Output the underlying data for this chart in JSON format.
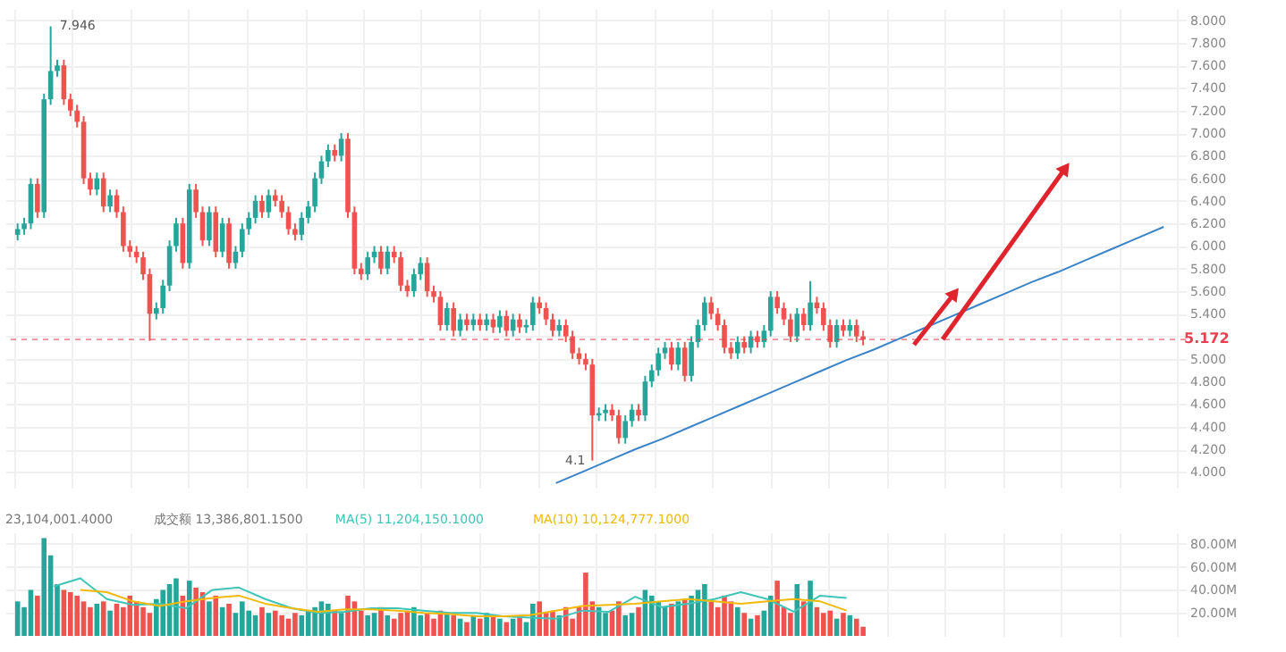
{
  "chart_data": [
    {
      "type": "candlestick",
      "ylim": [
        3.86,
        8.1
      ],
      "yticks": [
        {
          "value": 4,
          "label": "4.000"
        },
        {
          "value": 4.2,
          "label": "4.200"
        },
        {
          "value": 4.4,
          "label": "4.400"
        },
        {
          "value": 4.6,
          "label": "4.600"
        },
        {
          "value": 4.8,
          "label": "4.800"
        },
        {
          "value": 5,
          "label": "5.000"
        },
        {
          "value": 5.2,
          "label": null
        },
        {
          "value": 5.4,
          "label": "5.400"
        },
        {
          "value": 5.6,
          "label": "5.600"
        },
        {
          "value": 5.8,
          "label": "5.800"
        },
        {
          "value": 6,
          "label": "6.000"
        },
        {
          "value": 6.2,
          "label": "6.200"
        },
        {
          "value": 6.4,
          "label": "6.400"
        },
        {
          "value": 6.6,
          "label": "6.600"
        },
        {
          "value": 6.8,
          "label": "6.800"
        },
        {
          "value": 7,
          "label": "7.000"
        },
        {
          "value": 7.2,
          "label": "7.200"
        },
        {
          "value": 7.4,
          "label": "7.400"
        },
        {
          "value": 7.6,
          "label": "7.600"
        },
        {
          "value": 7.8,
          "label": "7.800"
        },
        {
          "value": 8,
          "label": "8.000"
        }
      ],
      "tick_labels": "y",
      "grid": true,
      "categories": [
        null,
        null,
        null,
        null,
        null,
        null,
        null,
        null,
        null,
        null,
        null,
        null,
        null,
        null,
        null,
        null,
        null,
        null,
        null,
        null,
        null,
        null,
        null,
        null,
        null,
        null,
        null,
        null,
        null,
        null,
        null,
        null,
        null,
        null,
        null,
        null,
        null,
        null,
        null,
        null,
        null,
        null,
        null,
        null,
        null,
        null,
        null,
        null,
        null,
        null,
        null,
        null,
        null,
        null,
        null,
        null,
        null,
        null,
        null,
        null,
        null,
        null,
        null,
        null,
        null,
        null,
        null,
        null,
        null,
        null,
        null,
        null,
        null,
        null,
        null,
        null,
        null,
        null,
        null,
        null,
        null,
        null,
        null,
        null,
        null,
        null,
        null,
        null,
        null,
        null,
        null,
        null,
        null,
        null,
        null,
        null,
        null,
        null,
        null,
        null,
        null,
        null,
        null,
        null,
        null,
        null,
        null,
        null,
        null,
        null,
        null,
        null,
        null,
        null,
        null,
        null,
        null,
        null,
        null,
        null,
        null,
        null,
        null,
        null,
        null,
        null,
        null,
        null,
        null,
        null,
        null,
        null,
        null,
        null,
        null,
        null,
        null,
        null,
        null,
        null,
        null,
        null,
        null,
        null,
        null,
        null,
        null,
        null,
        null,
        null,
        null,
        null,
        null,
        null,
        null,
        null,
        null,
        null,
        null,
        null,
        null,
        null,
        null,
        null,
        null,
        null,
        null,
        null,
        null,
        null,
        null,
        null,
        null,
        null,
        null,
        null
      ],
      "ohlc": [
        [
          6.1,
          6.2,
          6.05,
          6.15
        ],
        [
          6.15,
          6.25,
          6.1,
          6.2
        ],
        [
          6.2,
          6.6,
          6.15,
          6.55
        ],
        [
          6.55,
          6.6,
          6.25,
          6.3
        ],
        [
          6.3,
          7.35,
          6.25,
          7.3
        ],
        [
          7.3,
          7.946,
          7.25,
          7.55
        ],
        [
          7.55,
          7.65,
          7.5,
          7.6
        ],
        [
          7.6,
          7.65,
          7.25,
          7.3
        ],
        [
          7.3,
          7.35,
          7.15,
          7.2
        ],
        [
          7.2,
          7.25,
          7.05,
          7.1
        ],
        [
          7.1,
          7.15,
          6.55,
          6.6
        ],
        [
          6.6,
          6.65,
          6.45,
          6.5
        ],
        [
          6.5,
          6.65,
          6.45,
          6.6
        ],
        [
          6.6,
          6.65,
          6.3,
          6.35
        ],
        [
          6.35,
          6.5,
          6.3,
          6.45
        ],
        [
          6.45,
          6.5,
          6.25,
          6.3
        ],
        [
          6.3,
          6.35,
          5.95,
          6.0
        ],
        [
          6.0,
          6.05,
          5.9,
          5.95
        ],
        [
          5.95,
          6.0,
          5.85,
          5.9
        ],
        [
          5.9,
          5.95,
          5.7,
          5.75
        ],
        [
          5.75,
          5.8,
          5.16,
          5.4
        ],
        [
          5.4,
          5.5,
          5.35,
          5.45
        ],
        [
          5.45,
          5.7,
          5.4,
          5.65
        ],
        [
          5.65,
          6.05,
          5.6,
          6.0
        ],
        [
          6.0,
          6.25,
          5.95,
          6.2
        ],
        [
          6.2,
          6.25,
          5.8,
          5.85
        ],
        [
          5.85,
          6.55,
          5.8,
          6.5
        ],
        [
          6.5,
          6.55,
          6.25,
          6.3
        ],
        [
          6.3,
          6.35,
          6.0,
          6.05
        ],
        [
          6.05,
          6.35,
          6.0,
          6.3
        ],
        [
          6.3,
          6.35,
          5.9,
          5.95
        ],
        [
          5.95,
          6.25,
          5.9,
          6.2
        ],
        [
          6.2,
          6.25,
          5.8,
          5.85
        ],
        [
          5.85,
          6.0,
          5.8,
          5.95
        ],
        [
          5.95,
          6.2,
          5.9,
          6.15
        ],
        [
          6.15,
          6.3,
          6.1,
          6.25
        ],
        [
          6.25,
          6.45,
          6.2,
          6.4
        ],
        [
          6.4,
          6.45,
          6.25,
          6.3
        ],
        [
          6.3,
          6.5,
          6.25,
          6.45
        ],
        [
          6.45,
          6.5,
          6.35,
          6.4
        ],
        [
          6.4,
          6.45,
          6.25,
          6.3
        ],
        [
          6.3,
          6.35,
          6.1,
          6.15
        ],
        [
          6.15,
          6.2,
          6.05,
          6.1
        ],
        [
          6.1,
          6.3,
          6.05,
          6.25
        ],
        [
          6.25,
          6.4,
          6.2,
          6.35
        ],
        [
          6.35,
          6.65,
          6.3,
          6.6
        ],
        [
          6.6,
          6.8,
          6.55,
          6.75
        ],
        [
          6.75,
          6.9,
          6.7,
          6.85
        ],
        [
          6.85,
          6.9,
          6.75,
          6.8
        ],
        [
          6.8,
          7.0,
          6.75,
          6.95
        ],
        [
          6.95,
          7.0,
          6.25,
          6.3
        ],
        [
          6.3,
          6.35,
          5.75,
          5.8
        ],
        [
          5.8,
          5.85,
          5.7,
          5.75
        ],
        [
          5.75,
          5.95,
          5.7,
          5.9
        ],
        [
          5.9,
          6.0,
          5.85,
          5.95
        ],
        [
          5.95,
          6.0,
          5.75,
          5.8
        ],
        [
          5.8,
          6.0,
          5.75,
          5.95
        ],
        [
          5.95,
          6.0,
          5.85,
          5.9
        ],
        [
          5.9,
          5.95,
          5.6,
          5.65
        ],
        [
          5.65,
          5.7,
          5.55,
          5.6
        ],
        [
          5.6,
          5.8,
          5.55,
          5.75
        ],
        [
          5.75,
          5.9,
          5.7,
          5.85
        ],
        [
          5.85,
          5.9,
          5.55,
          5.6
        ],
        [
          5.6,
          5.65,
          5.5,
          5.55
        ],
        [
          5.55,
          5.6,
          5.25,
          5.3
        ],
        [
          5.3,
          5.5,
          5.25,
          5.45
        ],
        [
          5.45,
          5.5,
          5.2,
          5.25
        ],
        [
          5.25,
          5.4,
          5.2,
          5.35
        ],
        [
          5.35,
          5.4,
          5.25,
          5.3
        ],
        [
          5.3,
          5.4,
          5.25,
          5.35
        ],
        [
          5.35,
          5.4,
          5.25,
          5.3
        ],
        [
          5.3,
          5.4,
          5.25,
          5.35
        ],
        [
          5.35,
          5.4,
          5.23,
          5.28
        ],
        [
          5.28,
          5.43,
          5.23,
          5.38
        ],
        [
          5.38,
          5.43,
          5.2,
          5.25
        ],
        [
          5.25,
          5.4,
          5.2,
          5.35
        ],
        [
          5.35,
          5.4,
          5.23,
          5.28
        ],
        [
          5.28,
          5.35,
          5.23,
          5.3
        ],
        [
          5.3,
          5.55,
          5.25,
          5.5
        ],
        [
          5.5,
          5.55,
          5.4,
          5.45
        ],
        [
          5.45,
          5.5,
          5.3,
          5.35
        ],
        [
          5.35,
          5.4,
          5.2,
          5.25
        ],
        [
          5.25,
          5.35,
          5.2,
          5.3
        ],
        [
          5.3,
          5.35,
          5.15,
          5.2
        ],
        [
          5.2,
          5.25,
          5.0,
          5.05
        ],
        [
          5.05,
          5.1,
          4.95,
          5.0
        ],
        [
          5.0,
          5.05,
          4.9,
          4.95
        ],
        [
          4.95,
          5.0,
          4.1,
          4.5
        ],
        [
          4.5,
          4.57,
          4.45,
          4.52
        ],
        [
          4.52,
          4.6,
          4.45,
          4.55
        ],
        [
          4.55,
          4.6,
          4.45,
          4.5
        ],
        [
          4.5,
          4.55,
          4.25,
          4.3
        ],
        [
          4.3,
          4.5,
          4.25,
          4.45
        ],
        [
          4.45,
          4.6,
          4.4,
          4.55
        ],
        [
          4.55,
          4.6,
          4.45,
          4.5
        ],
        [
          4.5,
          4.85,
          4.45,
          4.8
        ],
        [
          4.8,
          4.95,
          4.75,
          4.9
        ],
        [
          4.9,
          5.1,
          4.85,
          5.05
        ],
        [
          5.05,
          5.15,
          5.0,
          5.1
        ],
        [
          5.1,
          5.15,
          4.9,
          4.95
        ],
        [
          4.95,
          5.15,
          4.9,
          5.1
        ],
        [
          5.1,
          5.15,
          4.8,
          4.85
        ],
        [
          4.85,
          5.2,
          4.8,
          5.15
        ],
        [
          5.15,
          5.35,
          5.1,
          5.3
        ],
        [
          5.3,
          5.55,
          5.25,
          5.5
        ],
        [
          5.5,
          5.55,
          5.35,
          5.4
        ],
        [
          5.4,
          5.45,
          5.25,
          5.3
        ],
        [
          5.3,
          5.35,
          5.05,
          5.1
        ],
        [
          5.1,
          5.15,
          5.0,
          5.05
        ],
        [
          5.05,
          5.2,
          5.0,
          5.15
        ],
        [
          5.15,
          5.2,
          5.05,
          5.1
        ],
        [
          5.1,
          5.25,
          5.05,
          5.2
        ],
        [
          5.2,
          5.25,
          5.1,
          5.15
        ],
        [
          5.15,
          5.3,
          5.1,
          5.25
        ],
        [
          5.25,
          5.6,
          5.2,
          5.55
        ],
        [
          5.55,
          5.6,
          5.4,
          5.45
        ],
        [
          5.45,
          5.5,
          5.3,
          5.35
        ],
        [
          5.35,
          5.4,
          5.15,
          5.2
        ],
        [
          5.2,
          5.45,
          5.15,
          5.4
        ],
        [
          5.4,
          5.45,
          5.25,
          5.3
        ],
        [
          5.3,
          5.69,
          5.25,
          5.5
        ],
        [
          5.5,
          5.55,
          5.4,
          5.45
        ],
        [
          5.45,
          5.5,
          5.25,
          5.3
        ],
        [
          5.3,
          5.35,
          5.1,
          5.15
        ],
        [
          5.15,
          5.35,
          5.1,
          5.3
        ],
        [
          5.3,
          5.35,
          5.2,
          5.25
        ],
        [
          5.25,
          5.35,
          5.2,
          5.3
        ],
        [
          5.3,
          5.35,
          5.15,
          5.2
        ],
        [
          5.2,
          5.25,
          5.12,
          5.172
        ],
        null,
        null,
        null,
        null,
        null,
        null,
        null,
        null,
        null,
        null,
        null,
        null,
        null,
        null,
        null,
        null,
        null,
        null,
        null,
        null,
        null,
        null,
        null,
        null,
        null,
        null,
        null,
        null,
        null,
        null,
        null,
        null,
        null,
        null,
        null,
        null,
        null,
        null,
        null,
        null,
        null,
        null,
        null,
        null,
        null,
        null,
        null
      ],
      "colors": [
        "#26a69a",
        "#26a69a",
        "#26a69a",
        "#ef5350",
        "#26a69a",
        "#26a69a",
        "#26a69a",
        "#ef5350",
        "#ef5350",
        "#ef5350",
        "#ef5350",
        "#ef5350",
        "#26a69a",
        "#ef5350",
        "#26a69a",
        "#ef5350",
        "#ef5350",
        "#ef5350",
        "#ef5350",
        "#ef5350",
        "#ef5350",
        "#26a69a",
        "#26a69a",
        "#26a69a",
        "#26a69a",
        "#ef5350",
        "#26a69a",
        "#ef5350",
        "#ef5350",
        "#26a69a",
        "#ef5350",
        "#26a69a",
        "#ef5350",
        "#26a69a",
        "#26a69a",
        "#26a69a",
        "#26a69a",
        "#ef5350",
        "#26a69a",
        "#ef5350",
        "#ef5350",
        "#ef5350",
        "#ef5350",
        "#26a69a",
        "#26a69a",
        "#26a69a",
        "#26a69a",
        "#26a69a",
        "#ef5350",
        "#26a69a",
        "#ef5350",
        "#ef5350",
        "#ef5350",
        "#26a69a",
        "#26a69a",
        "#ef5350",
        "#26a69a",
        "#ef5350",
        "#ef5350",
        "#ef5350",
        "#26a69a",
        "#26a69a",
        "#ef5350",
        "#ef5350",
        "#ef5350",
        "#26a69a",
        "#ef5350",
        "#26a69a",
        "#ef5350",
        "#26a69a",
        "#ef5350",
        "#26a69a",
        "#ef5350",
        "#26a69a",
        "#ef5350",
        "#26a69a",
        "#ef5350",
        "#26a69a",
        "#26a69a",
        "#ef5350",
        "#ef5350",
        "#ef5350",
        "#26a69a",
        "#ef5350",
        "#ef5350",
        "#ef5350",
        "#ef5350",
        "#ef5350",
        "#26a69a",
        "#26a69a",
        "#ef5350",
        "#ef5350",
        "#26a69a",
        "#26a69a",
        "#ef5350",
        "#26a69a",
        "#26a69a",
        "#26a69a",
        "#26a69a",
        "#ef5350",
        "#26a69a",
        "#ef5350",
        "#26a69a",
        "#26a69a",
        "#26a69a",
        "#ef5350",
        "#ef5350",
        "#ef5350",
        "#ef5350",
        "#26a69a",
        "#ef5350",
        "#26a69a",
        "#ef5350",
        "#26a69a",
        "#26a69a",
        "#ef5350",
        "#ef5350",
        "#ef5350",
        "#26a69a",
        "#ef5350",
        "#26a69a",
        "#ef5350",
        "#ef5350",
        "#ef5350",
        "#26a69a",
        "#ef5350",
        "#26a69a",
        "#ef5350",
        "#ef5350",
        null,
        null,
        null,
        null,
        null,
        null,
        null,
        null,
        null,
        null,
        null,
        null,
        null,
        null,
        null,
        null,
        null,
        null,
        null,
        null,
        null,
        null,
        null,
        null,
        null,
        null,
        null,
        null,
        null,
        null,
        null,
        null,
        null,
        null,
        null,
        null,
        null,
        null,
        null,
        null,
        null,
        null,
        null,
        null,
        null,
        null,
        null
      ],
      "ref_lines": [
        {
          "axis": "y",
          "value": 5.172,
          "label": "5.172",
          "color": "#e5414e",
          "line_style": "dashed"
        }
      ],
      "annotations": [
        "7.946",
        "4.1"
      ]
    },
    {
      "type": "line",
      "ylim": [
        3.86,
        8.1
      ],
      "tick_labels": false,
      "categories": [
        null,
        null,
        null,
        null,
        null,
        null,
        null,
        null,
        null,
        null,
        null,
        null,
        null,
        null,
        null,
        null,
        null,
        null,
        null,
        null,
        null,
        null,
        null,
        null,
        null,
        null,
        null,
        null,
        null,
        null,
        null,
        null,
        null,
        null,
        null,
        null,
        null,
        null,
        null,
        null,
        null,
        null,
        null,
        null
      ],
      "series": [
        {
          "color": "#3b83c8",
          "values": [
            null,
            null,
            null,
            null,
            null,
            null,
            null,
            null,
            null,
            null,
            null,
            null,
            null,
            null,
            null,
            null,
            null,
            null,
            null,
            null,
            3.9,
            4.0,
            4.1,
            4.2,
            4.29,
            4.39,
            4.49,
            4.59,
            4.69,
            4.79,
            4.89,
            4.99,
            5.08,
            5.18,
            5.28,
            5.38,
            5.48,
            5.58,
            5.68,
            5.77,
            5.87,
            5.97,
            6.07,
            6.17
          ]
        }
      ]
    },
    {
      "type": "bar",
      "ylim": [
        0,
        90
      ],
      "yticks": [
        {
          "value": 20,
          "label": "20.00M"
        },
        {
          "value": 40,
          "label": "40.00M"
        },
        {
          "value": 60,
          "label": "60.00M"
        },
        {
          "value": 80,
          "label": "80.00M"
        }
      ],
      "tick_labels": "y",
      "grid": true,
      "categories": [
        null,
        null,
        null,
        null,
        null,
        null,
        null,
        null,
        null,
        null,
        null,
        null,
        null,
        null,
        null,
        null,
        null,
        null,
        null,
        null,
        null,
        null,
        null,
        null,
        null,
        null,
        null,
        null,
        null,
        null,
        null,
        null,
        null,
        null,
        null,
        null,
        null,
        null,
        null,
        null,
        null,
        null,
        null,
        null,
        null,
        null,
        null,
        null,
        null,
        null,
        null,
        null,
        null,
        null,
        null,
        null,
        null,
        null,
        null,
        null,
        null,
        null,
        null,
        null,
        null,
        null,
        null,
        null,
        null,
        null,
        null,
        null,
        null,
        null,
        null,
        null,
        null,
        null,
        null,
        null,
        null,
        null,
        null,
        null,
        null,
        null,
        null,
        null,
        null,
        null,
        null,
        null,
        null,
        null,
        null,
        null,
        null,
        null,
        null,
        null,
        null,
        null,
        null,
        null,
        null,
        null,
        null,
        null,
        null,
        null,
        null,
        null,
        null,
        null,
        null,
        null,
        null,
        null,
        null,
        null,
        null,
        null,
        null,
        null,
        null,
        null,
        null,
        null,
        null,
        null,
        null,
        null,
        null,
        null,
        null,
        null,
        null,
        null,
        null,
        null,
        null,
        null,
        null,
        null,
        null,
        null,
        null,
        null,
        null,
        null,
        null,
        null,
        null,
        null,
        null,
        null,
        null,
        null,
        null,
        null,
        null,
        null,
        null,
        null,
        null,
        null,
        null,
        null,
        null,
        null,
        null,
        null,
        null,
        null,
        null,
        null
      ],
      "values": [
        30,
        25,
        40,
        35,
        85,
        70,
        45,
        40,
        38,
        35,
        30,
        25,
        28,
        30,
        22,
        28,
        25,
        35,
        30,
        25,
        20,
        32,
        40,
        45,
        50,
        35,
        48,
        42,
        38,
        30,
        35,
        25,
        28,
        20,
        30,
        22,
        18,
        25,
        20,
        22,
        18,
        15,
        20,
        18,
        22,
        25,
        30,
        28,
        22,
        20,
        35,
        30,
        22,
        18,
        20,
        25,
        18,
        15,
        20,
        22,
        25,
        18,
        20,
        15,
        22,
        20,
        18,
        15,
        12,
        18,
        15,
        20,
        18,
        15,
        12,
        15,
        18,
        12,
        28,
        30,
        20,
        22,
        18,
        25,
        15,
        25,
        55,
        30,
        25,
        20,
        22,
        30,
        18,
        20,
        25,
        40,
        35,
        30,
        25,
        28,
        30,
        32,
        35,
        40,
        45,
        30,
        25,
        35,
        30,
        25,
        20,
        15,
        18,
        22,
        35,
        48,
        25,
        20,
        45,
        30,
        48,
        25,
        20,
        22,
        15,
        20,
        18,
        15,
        8,
        null,
        null,
        null,
        null,
        null,
        null,
        null,
        null,
        null,
        null,
        null,
        null,
        null,
        null,
        null,
        null,
        null,
        null,
        null,
        null,
        null,
        null,
        null,
        null,
        null,
        null,
        null,
        null,
        null,
        null,
        null,
        null,
        null,
        null,
        null,
        null,
        null,
        null,
        null,
        null,
        null,
        null,
        null,
        null,
        null,
        null,
        null
      ],
      "colors": [
        "#26a69a",
        "#26a69a",
        "#26a69a",
        "#ef5350",
        "#26a69a",
        "#26a69a",
        "#26a69a",
        "#ef5350",
        "#ef5350",
        "#ef5350",
        "#ef5350",
        "#ef5350",
        "#26a69a",
        "#ef5350",
        "#26a69a",
        "#ef5350",
        "#ef5350",
        "#ef5350",
        "#ef5350",
        "#ef5350",
        "#ef5350",
        "#26a69a",
        "#26a69a",
        "#26a69a",
        "#26a69a",
        "#ef5350",
        "#26a69a",
        "#ef5350",
        "#ef5350",
        "#26a69a",
        "#ef5350",
        "#26a69a",
        "#ef5350",
        "#26a69a",
        "#26a69a",
        "#26a69a",
        "#26a69a",
        "#ef5350",
        "#26a69a",
        "#ef5350",
        "#ef5350",
        "#ef5350",
        "#ef5350",
        "#26a69a",
        "#26a69a",
        "#26a69a",
        "#26a69a",
        "#26a69a",
        "#ef5350",
        "#26a69a",
        "#ef5350",
        "#ef5350",
        "#ef5350",
        "#26a69a",
        "#26a69a",
        "#ef5350",
        "#26a69a",
        "#ef5350",
        "#ef5350",
        "#ef5350",
        "#26a69a",
        "#26a69a",
        "#ef5350",
        "#ef5350",
        "#ef5350",
        "#26a69a",
        "#ef5350",
        "#26a69a",
        "#ef5350",
        "#26a69a",
        "#ef5350",
        "#26a69a",
        "#ef5350",
        "#26a69a",
        "#ef5350",
        "#26a69a",
        "#ef5350",
        "#26a69a",
        "#26a69a",
        "#ef5350",
        "#ef5350",
        "#ef5350",
        "#26a69a",
        "#ef5350",
        "#ef5350",
        "#ef5350",
        "#ef5350",
        "#ef5350",
        "#26a69a",
        "#26a69a",
        "#ef5350",
        "#ef5350",
        "#26a69a",
        "#26a69a",
        "#ef5350",
        "#26a69a",
        "#26a69a",
        "#26a69a",
        "#26a69a",
        "#ef5350",
        "#26a69a",
        "#ef5350",
        "#26a69a",
        "#26a69a",
        "#26a69a",
        "#ef5350",
        "#ef5350",
        "#ef5350",
        "#ef5350",
        "#26a69a",
        "#ef5350",
        "#26a69a",
        "#ef5350",
        "#26a69a",
        "#26a69a",
        "#ef5350",
        "#ef5350",
        "#ef5350",
        "#26a69a",
        "#ef5350",
        "#26a69a",
        "#ef5350",
        "#ef5350",
        "#ef5350",
        "#26a69a",
        "#ef5350",
        "#26a69a",
        "#ef5350",
        "#ef5350",
        null,
        null,
        null,
        null,
        null,
        null,
        null,
        null,
        null,
        null,
        null,
        null,
        null,
        null,
        null,
        null,
        null,
        null,
        null,
        null,
        null,
        null,
        null,
        null,
        null,
        null,
        null,
        null,
        null,
        null,
        null,
        null,
        null,
        null,
        null,
        null,
        null,
        null,
        null,
        null,
        null,
        null,
        null,
        null,
        null,
        null,
        null
      ],
      "annotations": [
        "23,104,001.4000",
        "成交额 13,386,801.1500",
        "MA(5) 11,204,150.1000",
        "MA(10) 10,124,777.1000"
      ]
    },
    {
      "type": "line",
      "ylim": [
        0,
        90
      ],
      "tick_labels": false,
      "categories": [
        null,
        null,
        null,
        null,
        null,
        null,
        null,
        null,
        null,
        null,
        null,
        null,
        null,
        null,
        null,
        null,
        null,
        null,
        null,
        null,
        null,
        null,
        null,
        null,
        null,
        null,
        null,
        null,
        null,
        null,
        null,
        null,
        null,
        null,
        null,
        null,
        null,
        null,
        null,
        null,
        null,
        null,
        null,
        null
      ],
      "series": [
        {
          "color": "#3fc5b8",
          "values": [
            null,
            43,
            50,
            32,
            27,
            28,
            24,
            40,
            42,
            32,
            24,
            20,
            21,
            24,
            24,
            22,
            20,
            20,
            17,
            16,
            15,
            22,
            21,
            34,
            25,
            28,
            32,
            38,
            32,
            21,
            35,
            33,
            null,
            null,
            null,
            null,
            null,
            null,
            null,
            null,
            null,
            null,
            null,
            null
          ]
        }
      ]
    },
    {
      "type": "line",
      "ylim": [
        0,
        90
      ],
      "tick_labels": false,
      "categories": [
        null,
        null,
        null,
        null,
        null,
        null,
        null,
        null,
        null,
        null,
        null,
        null,
        null,
        null,
        null,
        null,
        null,
        null,
        null,
        null,
        null,
        null,
        null,
        null,
        null,
        null,
        null,
        null,
        null,
        null,
        null,
        null,
        null,
        null,
        null,
        null,
        null,
        null,
        null,
        null,
        null,
        null,
        null,
        null
      ],
      "series": [
        {
          "color": "#f0b90b",
          "values": [
            null,
            null,
            40,
            38,
            30,
            26,
            30,
            33,
            35,
            28,
            24,
            21,
            23,
            23,
            22,
            20,
            19,
            17,
            17,
            18,
            22,
            26,
            27,
            28,
            30,
            32,
            30,
            28,
            30,
            32,
            30,
            22,
            null,
            null,
            null,
            null,
            null,
            null,
            null,
            null,
            null,
            null,
            null,
            null
          ]
        }
      ]
    }
  ]
}
